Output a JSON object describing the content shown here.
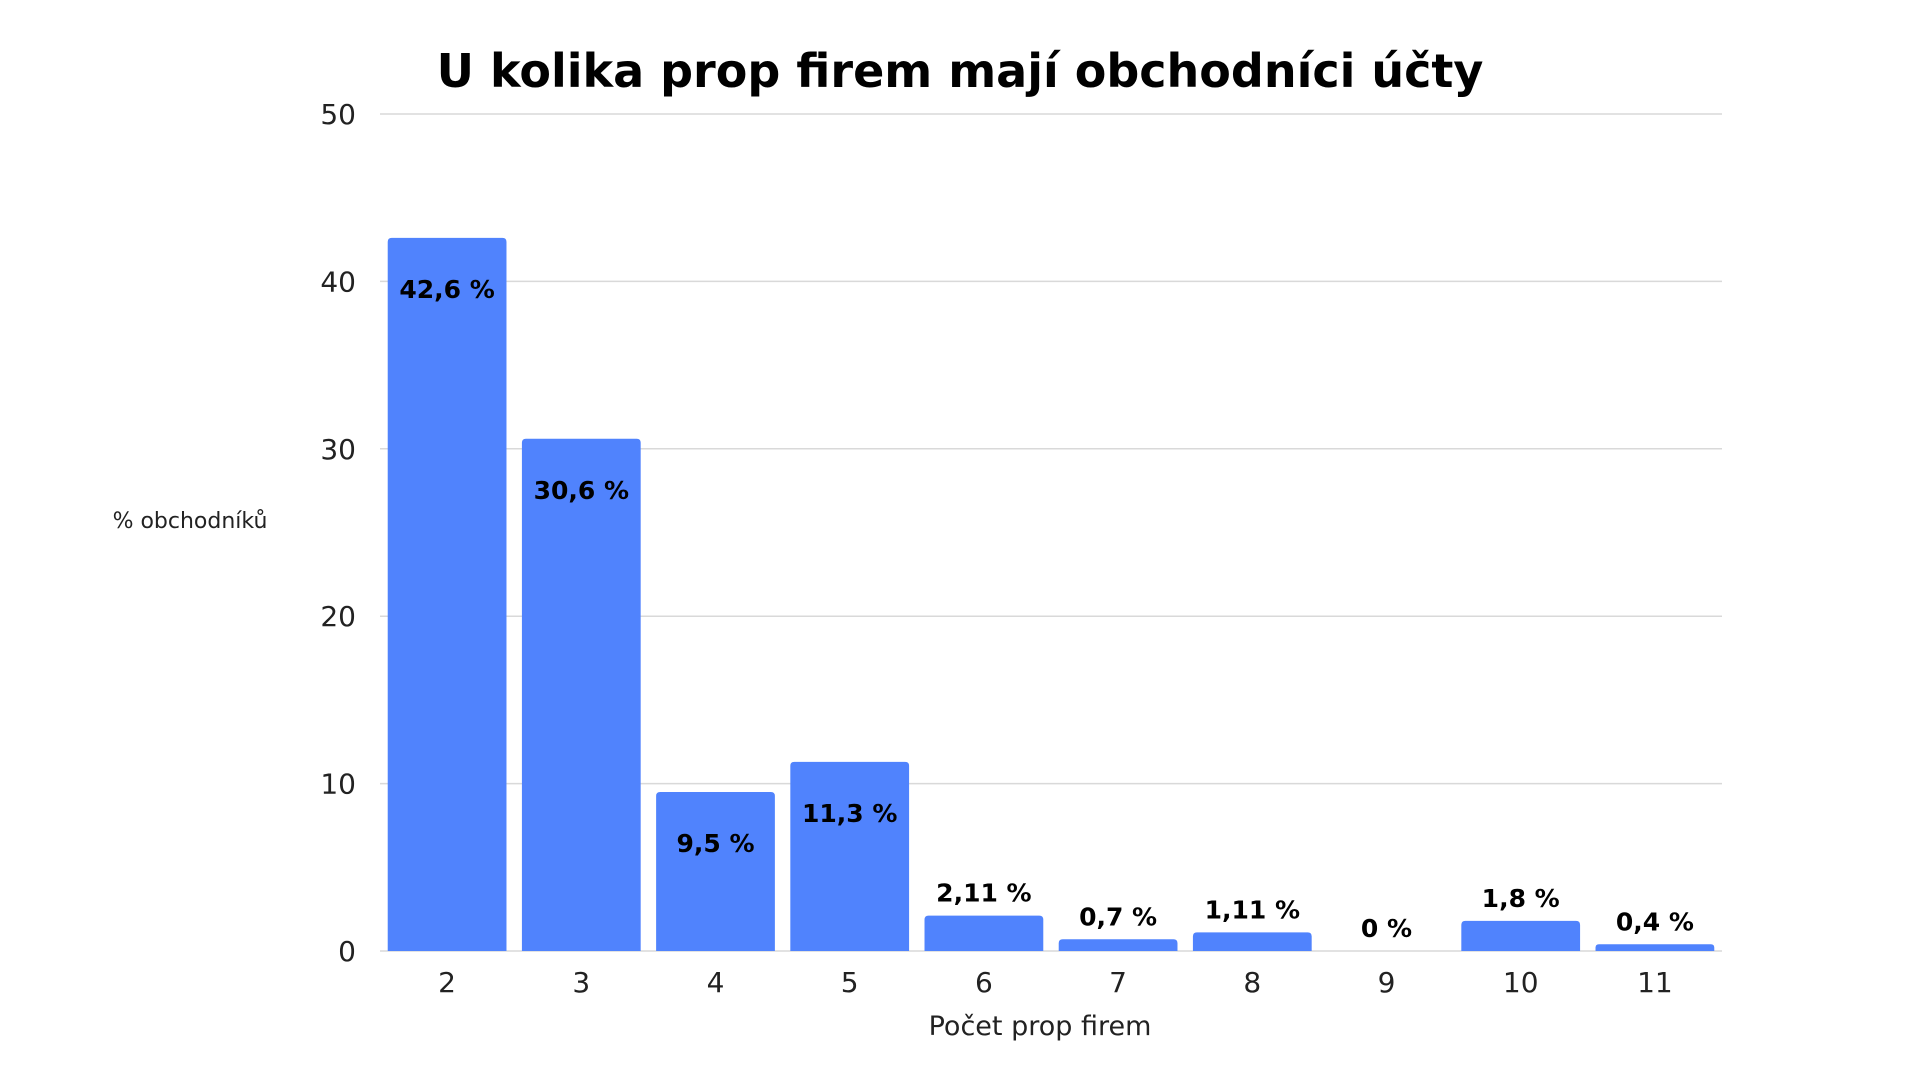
{
  "chart_data": {
    "type": "bar",
    "title": "U kolika prop firem mají obchodníci účty",
    "xlabel": "Počet prop firem",
    "ylabel": "% obchodníků",
    "categories": [
      "2",
      "3",
      "4",
      "5",
      "6",
      "7",
      "8",
      "9",
      "10",
      "11"
    ],
    "values": [
      42.6,
      30.6,
      9.5,
      11.3,
      2.11,
      0.7,
      1.11,
      0,
      1.8,
      0.4
    ],
    "data_labels": [
      "42,6 %",
      "30,6 %",
      "9,5 %",
      "11,3 %",
      "2,11 %",
      "0,7 %",
      "1,11 %",
      "0 %",
      "1,8 %",
      "0,4 %"
    ],
    "yticks": [
      "0",
      "10",
      "20",
      "30",
      "40",
      "50"
    ],
    "ylim": [
      0,
      50
    ],
    "grid": true,
    "legend": "none",
    "bar_color": "#5083fd",
    "grid_color": "#d9d9d9"
  }
}
